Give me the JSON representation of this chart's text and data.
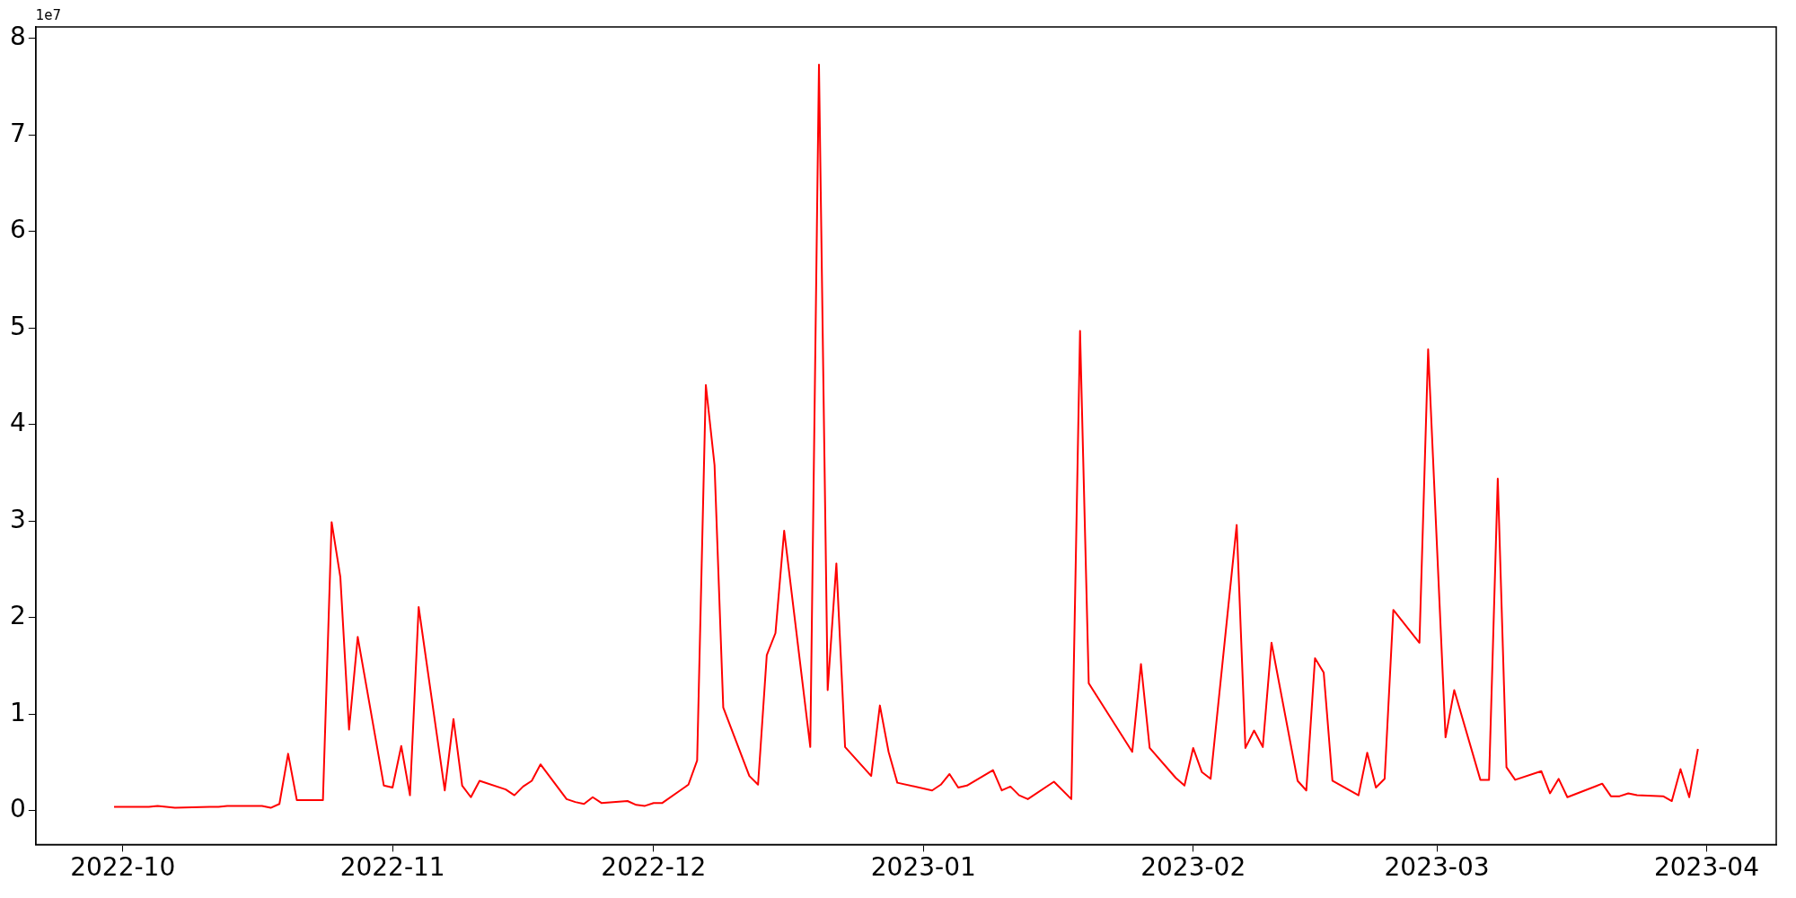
{
  "chart_data": {
    "type": "line",
    "annotations": [
      "1e7"
    ],
    "x": [
      "2022-09-30",
      "2022-10-04",
      "2022-10-05",
      "2022-10-06",
      "2022-10-07",
      "2022-10-11",
      "2022-10-12",
      "2022-10-13",
      "2022-10-17",
      "2022-10-18",
      "2022-10-19",
      "2022-10-20",
      "2022-10-21",
      "2022-10-24",
      "2022-10-25",
      "2022-10-26",
      "2022-10-27",
      "2022-10-28",
      "2022-10-31",
      "2022-11-01",
      "2022-11-02",
      "2022-11-03",
      "2022-11-04",
      "2022-11-07",
      "2022-11-08",
      "2022-11-09",
      "2022-11-10",
      "2022-11-11",
      "2022-11-14",
      "2022-11-15",
      "2022-11-16",
      "2022-11-17",
      "2022-11-18",
      "2022-11-21",
      "2022-11-22",
      "2022-11-23",
      "2022-11-24",
      "2022-11-25",
      "2022-11-28",
      "2022-11-29",
      "2022-11-30",
      "2022-12-01",
      "2022-12-02",
      "2022-12-05",
      "2022-12-06",
      "2022-12-07",
      "2022-12-08",
      "2022-12-09",
      "2022-12-12",
      "2022-12-13",
      "2022-12-14",
      "2022-12-15",
      "2022-12-16",
      "2022-12-19",
      "2022-12-20",
      "2022-12-21",
      "2022-12-22",
      "2022-12-23",
      "2022-12-26",
      "2022-12-27",
      "2022-12-28",
      "2022-12-29",
      "2023-01-02",
      "2023-01-03",
      "2023-01-04",
      "2023-01-05",
      "2023-01-06",
      "2023-01-09",
      "2023-01-10",
      "2023-01-11",
      "2023-01-12",
      "2023-01-13",
      "2023-01-16",
      "2023-01-18",
      "2023-01-19",
      "2023-01-20",
      "2023-01-25",
      "2023-01-26",
      "2023-01-27",
      "2023-01-30",
      "2023-01-31",
      "2023-02-01",
      "2023-02-02",
      "2023-02-03",
      "2023-02-06",
      "2023-02-07",
      "2023-02-08",
      "2023-02-09",
      "2023-02-10",
      "2023-02-13",
      "2023-02-14",
      "2023-02-15",
      "2023-02-16",
      "2023-02-17",
      "2023-02-20",
      "2023-02-21",
      "2023-02-22",
      "2023-02-23",
      "2023-02-24",
      "2023-02-27",
      "2023-02-28",
      "2023-03-02",
      "2023-03-03",
      "2023-03-06",
      "2023-03-07",
      "2023-03-08",
      "2023-03-09",
      "2023-03-10",
      "2023-03-13",
      "2023-03-14",
      "2023-03-15",
      "2023-03-16",
      "2023-03-20",
      "2023-03-21",
      "2023-03-22",
      "2023-03-23",
      "2023-03-24",
      "2023-03-27",
      "2023-03-28",
      "2023-03-29",
      "2023-03-30",
      "2023-03-31"
    ],
    "series": [
      {
        "color": "#ff0000",
        "values": [
          0.04,
          0.04,
          0.05,
          0.04,
          0.03,
          0.04,
          0.04,
          0.05,
          0.05,
          0.03,
          0.07,
          0.59,
          0.11,
          0.11,
          2.99,
          2.42,
          0.84,
          1.8,
          0.26,
          0.24,
          0.67,
          0.16,
          2.11,
          0.21,
          0.95,
          0.26,
          0.14,
          0.31,
          0.22,
          0.16,
          0.25,
          0.31,
          0.48,
          0.12,
          0.09,
          0.07,
          0.14,
          0.08,
          0.1,
          0.06,
          0.05,
          0.08,
          0.08,
          0.27,
          0.52,
          4.41,
          3.58,
          1.07,
          0.36,
          0.27,
          1.61,
          1.84,
          2.9,
          0.66,
          7.73,
          1.25,
          2.56,
          0.66,
          0.36,
          1.09,
          0.61,
          0.29,
          0.21,
          0.27,
          0.38,
          0.24,
          0.26,
          0.42,
          0.21,
          0.25,
          0.16,
          0.12,
          0.3,
          0.12,
          4.97,
          1.32,
          0.61,
          1.52,
          0.65,
          0.34,
          0.26,
          0.65,
          0.4,
          0.33,
          2.96,
          0.65,
          0.83,
          0.66,
          1.74,
          0.31,
          0.21,
          1.58,
          1.43,
          0.31,
          0.16,
          0.6,
          0.24,
          0.33,
          2.08,
          1.74,
          4.78,
          0.76,
          1.25,
          0.32,
          0.32,
          3.44,
          0.45,
          0.32,
          0.41,
          0.18,
          0.33,
          0.14,
          0.28,
          0.15,
          0.15,
          0.18,
          0.16,
          0.15,
          0.1,
          0.43,
          0.14,
          0.64
        ]
      }
    ],
    "xlim": [
      "2022-09-21",
      "2023-04-09"
    ],
    "xticks": [
      "2022-10",
      "2022-11",
      "2022-12",
      "2023-01",
      "2023-02",
      "2023-03",
      "2023-04"
    ],
    "ylim": [
      -0.35,
      8.12
    ],
    "yticks": [
      0,
      1,
      2,
      3,
      4,
      5,
      6,
      7,
      8
    ],
    "grid": false,
    "legend": false,
    "marker": "none",
    "line_style": "solid"
  }
}
